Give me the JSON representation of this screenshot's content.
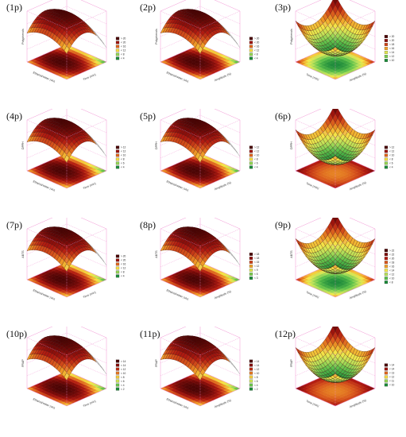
{
  "chart_data": [
    {
      "panel_label": "(1p)",
      "type": "surface3d",
      "x_axis": "Time (min)",
      "y_axis": "Ethanol/water (v/v)",
      "z_axis": "Polyphenols",
      "legend": [
        "> 20",
        "< 20",
        "< 16",
        "< 12",
        "< 8",
        "< 4"
      ],
      "shape": "dome",
      "cut_side": "right",
      "floor_tone": "green-low"
    },
    {
      "panel_label": "(2p)",
      "type": "surface3d",
      "x_axis": "Amplitude (%)",
      "y_axis": "Ethanol/water (v/v)",
      "z_axis": "Polyphenols",
      "legend": [
        "> 20",
        "< 20",
        "< 16",
        "< 12",
        "< 8",
        "< 4"
      ],
      "shape": "dome",
      "cut_side": "right",
      "floor_tone": "green-low"
    },
    {
      "panel_label": "(3p)",
      "type": "surface3d",
      "x_axis": "Amplitude (%)",
      "y_axis": "Time (min)",
      "z_axis": "Polyphenols",
      "legend": [
        "> 20",
        "< 20",
        "< 18",
        "< 16",
        "< 14",
        "< 12",
        "< 10"
      ],
      "shape": "saddle",
      "cut_side": "none",
      "floor_tone": "green-low"
    },
    {
      "panel_label": "(4p)",
      "type": "surface3d",
      "x_axis": "Time (min)",
      "y_axis": "Ethanol/water (v/v)",
      "z_axis": "DPPH",
      "legend": [
        "> 12",
        "< 12",
        "< 10",
        "< 8",
        "< 6",
        "< 4"
      ],
      "shape": "dome",
      "cut_side": "right",
      "floor_tone": "green-low"
    },
    {
      "panel_label": "(5p)",
      "type": "surface3d",
      "x_axis": "Amplitude (%)",
      "y_axis": "Ethanol/water (v/v)",
      "z_axis": "DPPH",
      "legend": [
        "> 12",
        "< 12",
        "< 10",
        "< 8",
        "< 6",
        "< 4"
      ],
      "shape": "dome",
      "cut_side": "right",
      "floor_tone": "green-low"
    },
    {
      "panel_label": "(6p)",
      "type": "surface3d",
      "x_axis": "Amplitude (%)",
      "y_axis": "Time (min)",
      "z_axis": "DPPH",
      "legend": [
        "> 12",
        "< 12",
        "< 10",
        "< 8",
        "< 6",
        "< 4"
      ],
      "shape": "saddle",
      "cut_side": "none",
      "floor_tone": "red"
    },
    {
      "panel_label": "(7p)",
      "type": "surface3d",
      "x_axis": "Time (min)",
      "y_axis": "Ethanol/water (v/v)",
      "z_axis": "ABTS",
      "legend": [
        "> 20",
        "< 20",
        "< 16",
        "< 12",
        "< 8",
        "< 4"
      ],
      "shape": "dome",
      "cut_side": "right",
      "floor_tone": "green-low"
    },
    {
      "panel_label": "(8p)",
      "type": "surface3d",
      "x_axis": "Amplitude (%)",
      "y_axis": "Ethanol/water (v/v)",
      "z_axis": "ABTS",
      "legend": [
        "> 18",
        "< 18",
        "< 15",
        "< 12",
        "< 9",
        "< 6",
        "< 3"
      ],
      "shape": "dome",
      "cut_side": "right",
      "floor_tone": "green-low"
    },
    {
      "panel_label": "(9p)",
      "type": "surface3d",
      "x_axis": "Amplitude (%)",
      "y_axis": "Time (min)",
      "z_axis": "ABTS",
      "legend": [
        "> 22",
        "< 22",
        "< 20",
        "< 18",
        "< 16",
        "< 14",
        "< 12",
        "< 10",
        "< 8"
      ],
      "shape": "saddle",
      "cut_side": "none",
      "floor_tone": "green-low"
    },
    {
      "panel_label": "(10p)",
      "type": "surface3d",
      "x_axis": "Time (min)",
      "y_axis": "Ethanol/water (v/v)",
      "z_axis": "FRAP",
      "legend": [
        "> 14",
        "< 14",
        "< 12",
        "< 10",
        "< 8",
        "< 6",
        "< 4",
        "< 2"
      ],
      "shape": "dome",
      "cut_side": "right",
      "floor_tone": "green-low"
    },
    {
      "panel_label": "(11p)",
      "type": "surface3d",
      "x_axis": "Amplitude (%)",
      "y_axis": "Ethanol/water (v/v)",
      "z_axis": "FRAP",
      "legend": [
        "> 14",
        "< 14",
        "< 12",
        "< 10",
        "< 8",
        "< 6",
        "< 4",
        "< 2"
      ],
      "shape": "dome",
      "cut_side": "right",
      "floor_tone": "green-low"
    },
    {
      "panel_label": "(12p)",
      "type": "surface3d",
      "x_axis": "Amplitude (%)",
      "y_axis": "Time (min)",
      "z_axis": "FRAP",
      "legend": [
        "> 14",
        "< 14",
        "< 13",
        "< 12",
        "< 11",
        "< 10"
      ],
      "shape": "saddle",
      "cut_side": "none",
      "floor_tone": "red"
    }
  ],
  "colors": {
    "scale": [
      "#ffffff",
      "#1d8a3a",
      "#5cc04a",
      "#b8e05a",
      "#f4e84a",
      "#f0a028",
      "#d8561c",
      "#b01a10",
      "#7a0a08",
      "#4a0404"
    ],
    "frame": "#f08cd0"
  }
}
